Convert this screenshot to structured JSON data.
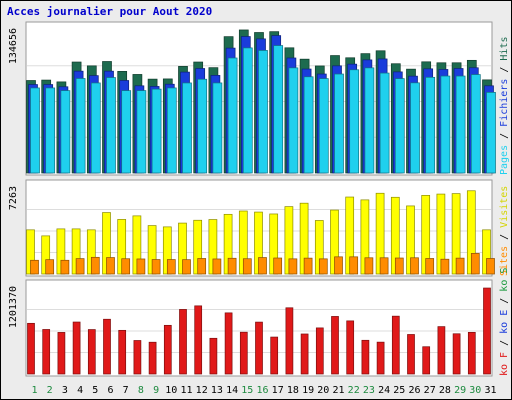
{
  "chart_data": [
    {
      "type": "bar",
      "title": "Acces journalier pour Aout 2020",
      "ymax_label": "134656",
      "legend": [
        "Pages",
        "Fichiers",
        "Hits"
      ],
      "legend_separator": " / ",
      "categories": [
        "1",
        "2",
        "3",
        "4",
        "5",
        "6",
        "7",
        "8",
        "9",
        "10",
        "11",
        "12",
        "13",
        "14",
        "15",
        "16",
        "17",
        "18",
        "19",
        "20",
        "21",
        "22",
        "23",
        "24",
        "25",
        "26",
        "27",
        "28",
        "29",
        "30",
        "31"
      ],
      "weekend_days": [
        "1",
        "2",
        "8",
        "9",
        "15",
        "16",
        "22",
        "23",
        "29",
        "30"
      ],
      "series": [
        {
          "name": "Hits",
          "color": "#1d6b4f",
          "values": [
            87100,
            87500,
            85800,
            104500,
            100900,
            105000,
            95700,
            92800,
            88400,
            88600,
            100400,
            104500,
            99200,
            128400,
            134700,
            132300,
            133100,
            117900,
            107200,
            100800,
            110600,
            108500,
            112400,
            115100,
            102900,
            97800,
            104700,
            103800,
            103800,
            106100,
            87700
          ]
        },
        {
          "name": "Fichiers",
          "color": "#1a3cdb",
          "values": [
            83300,
            83300,
            81200,
            95900,
            91700,
            95900,
            87100,
            82100,
            81500,
            83600,
            95000,
            98400,
            91900,
            117600,
            128500,
            126300,
            129400,
            108300,
            97900,
            93200,
            100900,
            102500,
            106500,
            107400,
            95200,
            91200,
            98100,
            97500,
            98400,
            99100,
            82100
          ]
        },
        {
          "name": "Pages",
          "color": "#1fd0ee",
          "values": [
            80100,
            80100,
            77600,
            89000,
            84800,
            89900,
            77600,
            77600,
            79000,
            80100,
            84800,
            88300,
            84800,
            108300,
            117800,
            115400,
            120000,
            99000,
            90600,
            88900,
            93200,
            97200,
            99000,
            94100,
            88900,
            84900,
            90100,
            91300,
            91300,
            92700,
            75900
          ]
        }
      ],
      "ylim": [
        0,
        134656
      ]
    },
    {
      "type": "bar",
      "ymax_label": "7263",
      "legend": [
        "Sites",
        "Visites"
      ],
      "legend_separator": " / ",
      "categories": [
        "1",
        "2",
        "3",
        "4",
        "5",
        "6",
        "7",
        "8",
        "9",
        "10",
        "11",
        "12",
        "13",
        "14",
        "15",
        "16",
        "17",
        "18",
        "19",
        "20",
        "21",
        "22",
        "23",
        "24",
        "25",
        "26",
        "27",
        "28",
        "29",
        "30",
        "31"
      ],
      "series": [
        {
          "name": "Visites",
          "color": "#ffff00",
          "values": [
            3730,
            3220,
            3810,
            3810,
            3730,
            5190,
            4610,
            4910,
            4090,
            3980,
            4300,
            4540,
            4600,
            5040,
            5320,
            5230,
            5070,
            5690,
            5980,
            4520,
            5400,
            6500,
            6260,
            6820,
            6480,
            5750,
            6640,
            6750,
            6790,
            7030,
            3730
          ]
        },
        {
          "name": "Sites",
          "color": "#ff8c00",
          "values": [
            1160,
            1210,
            1160,
            1300,
            1410,
            1390,
            1290,
            1270,
            1220,
            1220,
            1210,
            1310,
            1270,
            1330,
            1290,
            1390,
            1350,
            1280,
            1340,
            1280,
            1450,
            1450,
            1370,
            1370,
            1350,
            1370,
            1310,
            1250,
            1340,
            1740,
            1310
          ]
        }
      ],
      "ylim": [
        0,
        7263
      ]
    },
    {
      "type": "bar",
      "ymax_label": "1201370",
      "legend": [
        "ko F",
        "ko E",
        "ko S"
      ],
      "legend_separator": " / ",
      "categories": [
        "1",
        "2",
        "3",
        "4",
        "5",
        "6",
        "7",
        "8",
        "9",
        "10",
        "11",
        "12",
        "13",
        "14",
        "15",
        "16",
        "17",
        "18",
        "19",
        "20",
        "21",
        "22",
        "23",
        "24",
        "25",
        "26",
        "27",
        "28",
        "29",
        "30",
        "31"
      ],
      "series": [
        {
          "name": "ko F",
          "color": "#e01919",
          "values": [
            708000,
            622000,
            581000,
            726000,
            621000,
            765000,
            610000,
            468000,
            444000,
            680000,
            902000,
            952000,
            499000,
            854000,
            584000,
            725000,
            516000,
            925000,
            559000,
            644000,
            804000,
            742000,
            471000,
            445000,
            808000,
            552000,
            381000,
            662000,
            562000,
            582000,
            1201000
          ]
        }
      ],
      "ylim": [
        0,
        1201370
      ]
    }
  ],
  "colors": {
    "frame_bg": "#ececec",
    "panel_bg": "#ffffff",
    "title": "#0000cc",
    "label_pages": "#1fd0ee",
    "label_fichiers": "#1a3cdb",
    "label_hits": "#1d6b4f",
    "label_sites": "#ff8c00",
    "label_visites": "#d4d400",
    "label_kof": "#e01919",
    "label_koe": "#1a3cdb",
    "label_kos": "#1d9b3f",
    "weekday": "#000000",
    "weekend": "#1d8a3f"
  }
}
